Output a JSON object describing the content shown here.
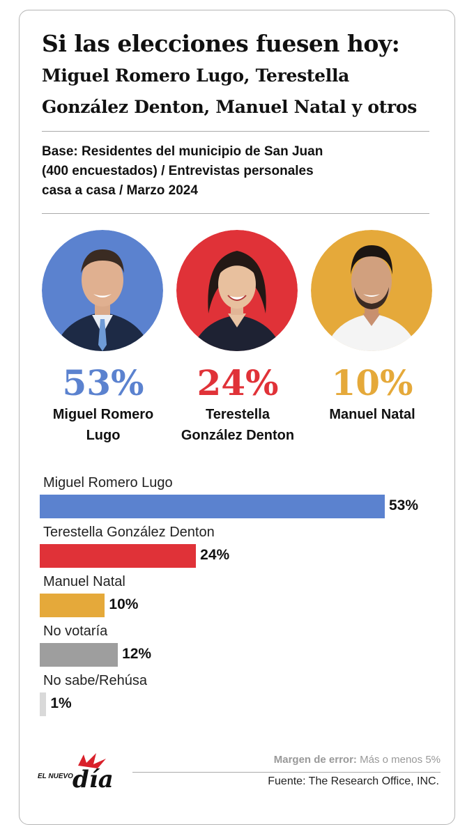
{
  "title": "Si las elecciones fuesen hoy:",
  "subtitle_line1": "Miguel Romero Lugo, Terestella",
  "subtitle_line2": "González Denton, Manuel Natal y otros",
  "base_line1": "Base: Residentes del municipio de San Juan",
  "base_line2": "(400 encuestados) / Entrevistas personales",
  "base_line3": "casa a casa / Marzo 2024",
  "candidates": [
    {
      "pct": "53%",
      "name_line1": "Miguel Romero",
      "name_line2": "Lugo",
      "color": "#5b82cf"
    },
    {
      "pct": "24%",
      "name_line1": "Terestella",
      "name_line2": "González Denton",
      "color": "#e03238"
    },
    {
      "pct": "10%",
      "name_line1": "Manuel Natal",
      "name_line2": "",
      "color": "#e5a93a"
    }
  ],
  "chart_data": {
    "type": "bar",
    "orientation": "horizontal",
    "categories": [
      "Miguel Romero Lugo",
      "Terestella González Denton",
      "Manuel Natal",
      "No votaría",
      "No sabe/Rehúsa"
    ],
    "values": [
      53,
      24,
      10,
      12,
      1
    ],
    "value_labels": [
      "53%",
      "24%",
      "10%",
      "12%",
      "1%"
    ],
    "colors": [
      "#5b82cf",
      "#e03238",
      "#e5a93a",
      "#9e9e9e",
      "#d9d9d9"
    ],
    "xlim": [
      0,
      53
    ]
  },
  "footer": {
    "margin_label": "Margen de error:",
    "margin_value": "Más o menos 5%",
    "source": "Fuente: The Research Office, INC.",
    "logo_small": "EL NUEVO",
    "logo_big": "día"
  }
}
